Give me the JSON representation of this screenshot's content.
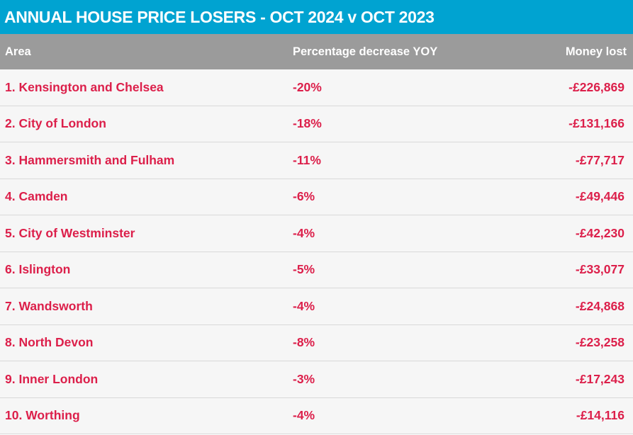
{
  "title": "ANNUAL HOUSE PRICE LOSERS - OCT 2024 v OCT 2023",
  "colors": {
    "title_bg": "#00a3d1",
    "header_bg": "#9b9b9b",
    "row_text": "#dc1f4a",
    "row_bg": "#f6f6f6"
  },
  "chart_data": {
    "type": "table",
    "title": "ANNUAL HOUSE PRICE LOSERS - OCT 2024 v OCT 2023",
    "columns": [
      "Area",
      "Percentage decrease YOY",
      "Money lost"
    ],
    "rows": [
      [
        "1. Kensington and Chelsea",
        "-20%",
        "-£226,869"
      ],
      [
        "2. City of London",
        "-18%",
        "-£131,166"
      ],
      [
        "3. Hammersmith and Fulham",
        "-11%",
        "-£77,717"
      ],
      [
        "4. Camden",
        "-6%",
        "-£49,446"
      ],
      [
        "5. City of Westminster",
        "-4%",
        "-£42,230"
      ],
      [
        "6. Islington",
        "-5%",
        "-£33,077"
      ],
      [
        "7. Wandsworth",
        "-4%",
        "-£24,868"
      ],
      [
        "8. North Devon",
        "-8%",
        "-£23,258"
      ],
      [
        "9. Inner London",
        "-3%",
        "-£17,243"
      ],
      [
        "10. Worthing",
        "-4%",
        "-£14,116"
      ]
    ]
  }
}
